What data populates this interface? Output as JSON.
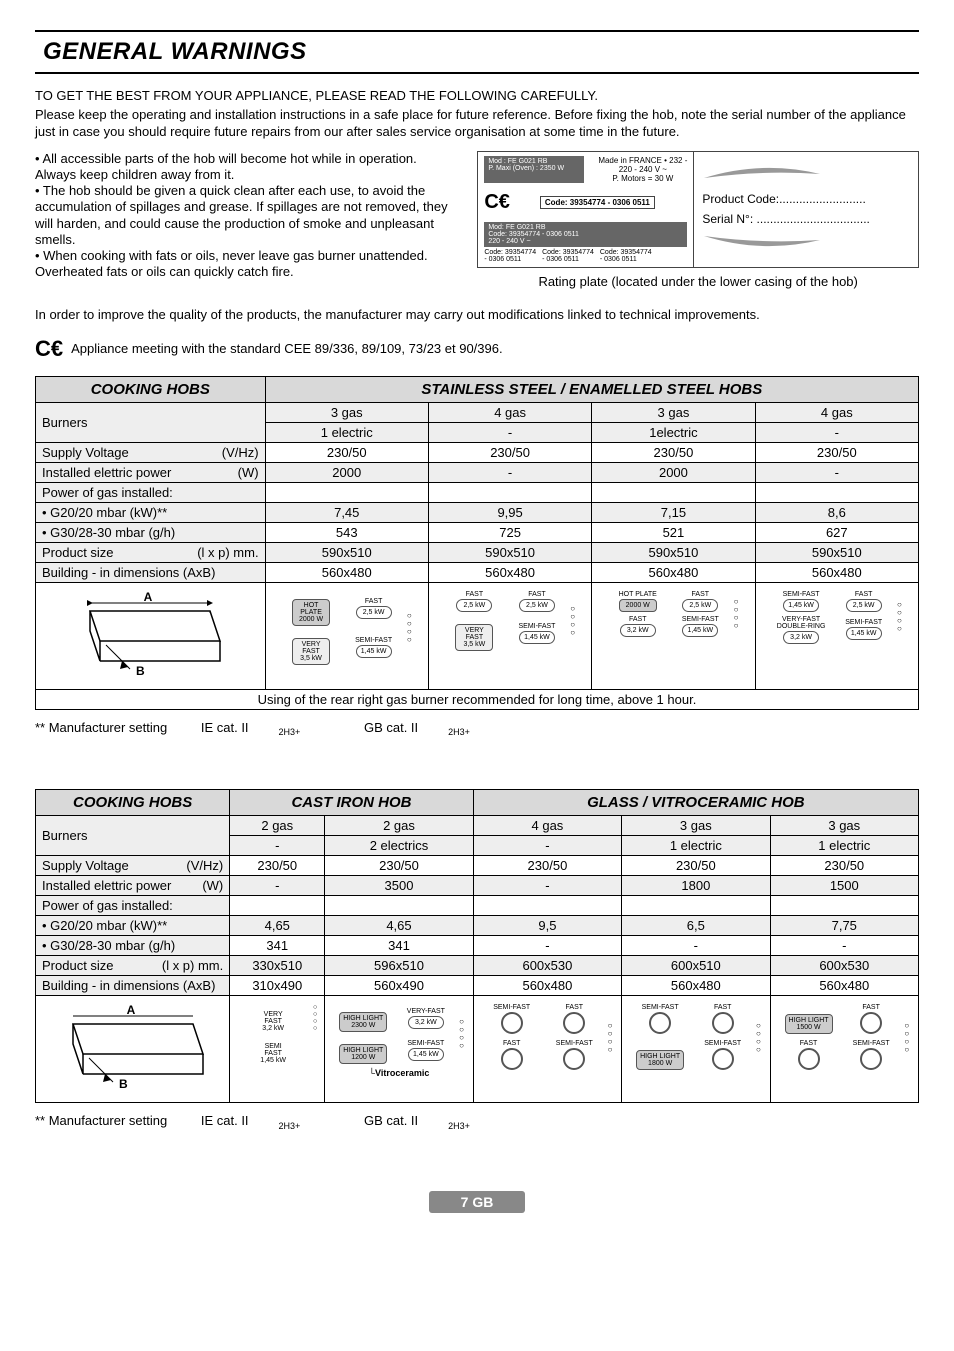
{
  "title": "GENERAL WARNINGS",
  "intro_lead": "TO GET THE BEST FROM YOUR APPLIANCE, PLEASE READ THE FOLLOWING CAREFULLY.",
  "intro_body": "Please keep the operating and installation instructions in a safe place for future reference. Before fixing the hob, note the serial number of the appliance just in case you should require future repairs from our after sales service organisation at some time in the future.",
  "bullets": [
    "• All accessible parts of the hob will become hot while in operation. Always keep children away from it.",
    "• The hob should be given a quick clean after each use, to avoid the accumulation of spillages and grease. If spillages are not removed, they will harden, and could cause the production of smoke and unpleasant smells.",
    "• When cooking with fats or oils, never leave gas burner unattended. Overheated fats or oils can quickly catch fire."
  ],
  "plate": {
    "mod": "Mod : FE G021 RB",
    "maxi": "P. Maxi (Oven) : 2350 W",
    "made": "Made in FRANCE  •  232 -",
    "volt": "220 - 240 V ~",
    "motors": "P. Motors = 30 W",
    "codebar": "Code: 39354774  - 0306 0511",
    "dark_mod": "Mod: FE G021 RB",
    "dark_code": "Code: 39354774 - 0306 0511",
    "dark_v": "220 - 240 V ~",
    "trio1": "Code: 39354774\n- 0306 0511",
    "trio2": "Code: 39354774\n- 0306 0511",
    "trio3": "Code: 39354774\n- 0306 0511",
    "product_code": "Product Code:",
    "serial": "Serial N°:"
  },
  "caption": "Rating plate (located under the lower casing of the hob)",
  "improve": "In order to improve the quality of the products, the manufacturer may carry out modifications linked to technical improvements.",
  "ce_text": "Appliance meeting with the standard CEE 89/336, 89/109, 73/23 et 90/396.",
  "table1": {
    "hdr_left": "COOKING HOBS",
    "hdr_right": "STAINLESS STEEL / ENAMELLED STEEL HOBS",
    "rows": {
      "burners": "Burners",
      "supply": "Supply Voltage",
      "supply_u": "(V/Hz)",
      "inst": "Installed elettric power",
      "inst_u": "(W)",
      "pgas": "Power of gas installed:",
      "g20": "• G20/20 mbar (kW)**",
      "g30": "• G30/28-30 mbar (g/h)",
      "psize": "Product size",
      "psize_u": "(l x p) mm.",
      "build": "Building - in dimensions (AxB)"
    },
    "cols": [
      {
        "burners1": "3 gas",
        "burners2": "1 electric",
        "supply": "230/50",
        "inst": "2000",
        "g20": "7,45",
        "g30": "543",
        "psize": "590x510",
        "build": "560x480"
      },
      {
        "burners1": "4 gas",
        "burners2": "-",
        "supply": "230/50",
        "inst": "-",
        "g20": "9,95",
        "g30": "725",
        "psize": "590x510",
        "build": "560x480"
      },
      {
        "burners1": "3 gas",
        "burners2": "1electric",
        "supply": "230/50",
        "inst": "2000",
        "g20": "7,15",
        "g30": "521",
        "psize": "590x510",
        "build": "560x480"
      },
      {
        "burners1": "4 gas",
        "burners2": "-",
        "supply": "230/50",
        "inst": "-",
        "g20": "8,6",
        "g30": "627",
        "psize": "590x510",
        "build": "560x480"
      }
    ],
    "layouts": [
      {
        "tl_lbl": "",
        "tl": "HOT\nPLATE\n2000 W",
        "tl_type": "rect",
        "tr_lbl": "FAST",
        "tr": "2,5 kW",
        "bl_lbl": "",
        "bl": "VERY\nFAST\n3,5 kW",
        "bl_type": "rect-l",
        "br_lbl": "SEMI-FAST",
        "br": "1,45 kW"
      },
      {
        "tl_lbl": "FAST",
        "tl": "2,5 kW",
        "tr_lbl": "FAST",
        "tr": "2,5 kW",
        "bl_lbl": "",
        "bl": "VERY\nFAST\n3,5 kW",
        "bl_type": "rect-l",
        "br_lbl": "SEMI-FAST",
        "br": "1,45 kW"
      },
      {
        "tl_lbl": "HOT PLATE",
        "tl": "2000 W",
        "tl_type": "rect",
        "tr_lbl": "FAST",
        "tr": "2,5 kW",
        "bl_lbl": "FAST",
        "bl": "3,2 kW",
        "br_lbl": "SEMI-FAST",
        "br": "1,45 kW"
      },
      {
        "tl_lbl": "SEMI-FAST",
        "tl": "1,45 kW",
        "tr_lbl": "FAST",
        "tr": "2,5 kW",
        "bl_lbl": "VERY-FAST\nDOUBLE-RING",
        "bl": "3,2 kW",
        "br_lbl": "SEMI-FAST",
        "br": "1,45 kW"
      }
    ],
    "using": "Using of the rear right gas burner recommended for long time, above 1 hour."
  },
  "foot1": {
    "a": "** Manufacturer setting",
    "b": "IE cat. II",
    "b2": "2H3+",
    "c": "GB cat. II",
    "c2": "2H3+"
  },
  "table2": {
    "hdr_left": "COOKING HOBS",
    "hdr_mid": "CAST IRON HOB",
    "hdr_right": "GLASS / VITROCERAMIC HOB",
    "cols": [
      {
        "burners1": "2 gas",
        "burners2": "-",
        "supply": "230/50",
        "inst": "-",
        "g20": "4,65",
        "g30": "341",
        "psize": "330x510",
        "build": "310x490"
      },
      {
        "burners1": "2 gas",
        "burners2": "2 electrics",
        "supply": "230/50",
        "inst": "3500",
        "g20": "4,65",
        "g30": "341",
        "psize": "596x510",
        "build": "560x490"
      },
      {
        "burners1": "4 gas",
        "burners2": "-",
        "supply": "230/50",
        "inst": "-",
        "g20": "9,5",
        "g30": "-",
        "psize": "600x530",
        "build": "560x480"
      },
      {
        "burners1": "3 gas",
        "burners2": "1 electric",
        "supply": "230/50",
        "inst": "1800",
        "g20": "6,5",
        "g30": "-",
        "psize": "600x510",
        "build": "560x480"
      },
      {
        "burners1": "3 gas",
        "burners2": "1 electric",
        "supply": "230/50",
        "inst": "1500",
        "g20": "7,75",
        "g30": "-",
        "psize": "600x530",
        "build": "560x480"
      }
    ],
    "layouts": [
      {
        "tl_lbl": "",
        "tl": "VERY\nFAST\n3,2 kW",
        "tl_type": "rect-l",
        "bl_lbl": "",
        "bl": "SEMI\nFAST\n1,45 kW",
        "bl_type": "rect-l",
        "single_col": true
      },
      {
        "tl_lbl": "",
        "tl": "HIGH LIGHT\n2300 W",
        "tl_type": "rect",
        "tr_lbl": "VERY-FAST",
        "tr": "3,2 kW",
        "bl_lbl": "",
        "bl": "HIGH LIGHT\n1200 W",
        "bl_type": "rect",
        "br_lbl": "SEMI-FAST",
        "br": "1,45 kW",
        "foot": "Vitroceramic"
      },
      {
        "tl_lbl": "SEMI-FAST",
        "tl": "ring",
        "tr_lbl": "FAST",
        "tr": "ring",
        "bl_lbl": "FAST",
        "bl": "ring",
        "br_lbl": "SEMI-FAST",
        "br": "ring"
      },
      {
        "tl_lbl": "SEMI-FAST",
        "tl": "ring",
        "tr_lbl": "FAST",
        "tr": "ring",
        "bl_lbl": "",
        "bl": "HIGH LIGHT\n1800 W",
        "bl_type": "rect",
        "br_lbl": "SEMI-FAST",
        "br": "ring"
      },
      {
        "tl_lbl": "",
        "tl": "HIGH LIGHT\n1500 W",
        "tl_type": "rect",
        "tr_lbl": "FAST",
        "tr": "ring",
        "bl_lbl": "FAST",
        "bl": "ring",
        "br_lbl": "SEMI-FAST",
        "br": "ring"
      }
    ]
  },
  "page_num": "7 GB"
}
